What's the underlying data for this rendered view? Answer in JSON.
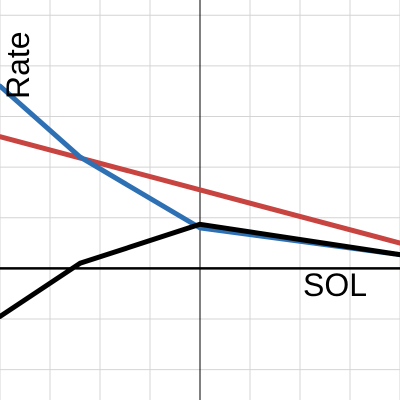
{
  "chart_data": {
    "type": "line",
    "xlabel": "SOL",
    "ylabel": "Rate",
    "xlim": [
      -4,
      4
    ],
    "ylim": [
      -2.6,
      5.3
    ],
    "grid": true,
    "x_grid_step": 1,
    "y_grid_step": 1,
    "series": [
      {
        "color": "#c74440",
        "points": [
          [
            -4,
            2.6
          ],
          [
            4,
            0.5
          ]
        ]
      },
      {
        "color": "#2d70b3",
        "points": [
          [
            -4,
            3.6
          ],
          [
            -2.4,
            2.2
          ],
          [
            0,
            0.8
          ],
          [
            4,
            0.27
          ]
        ]
      },
      {
        "color": "#000000",
        "points": [
          [
            -4,
            -0.95
          ],
          [
            -2.4,
            0.1
          ],
          [
            0,
            0.87
          ],
          [
            4,
            0.27
          ]
        ]
      }
    ],
    "colors": {
      "grid": "#d4d4d4",
      "axis": "#000000"
    }
  }
}
